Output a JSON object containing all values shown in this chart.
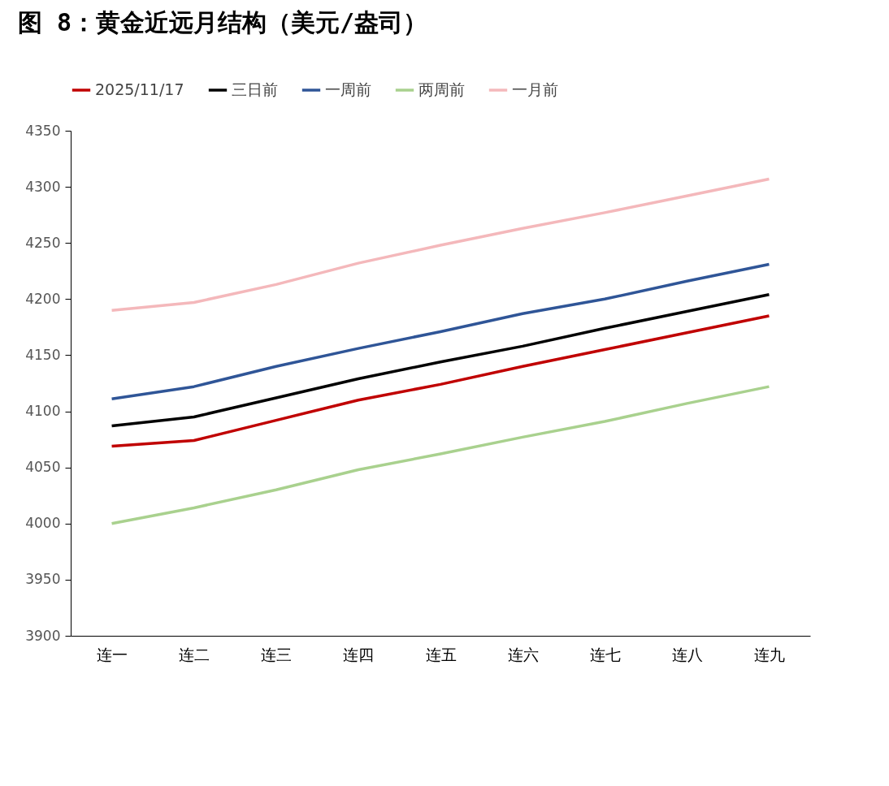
{
  "chart_data": {
    "type": "line",
    "title": "图 8：黄金近远月结构（美元/盎司）",
    "categories": [
      "连一",
      "连二",
      "连三",
      "连四",
      "连五",
      "连六",
      "连七",
      "连八",
      "连九"
    ],
    "series": [
      {
        "name": "2025/11/17",
        "color": "#c00000",
        "values": [
          4069,
          4074,
          4092,
          4110,
          4124,
          4140,
          4155,
          4170,
          4185
        ]
      },
      {
        "name": "三日前",
        "color": "#000000",
        "values": [
          4087,
          4095,
          4112,
          4129,
          4144,
          4158,
          4174,
          4189,
          4204
        ]
      },
      {
        "name": "一周前",
        "color": "#2f5597",
        "values": [
          4111,
          4122,
          4140,
          4156,
          4171,
          4187,
          4200,
          4216,
          4231
        ]
      },
      {
        "name": "两周前",
        "color": "#a9d18e",
        "values": [
          4000,
          4014,
          4030,
          4048,
          4062,
          4077,
          4091,
          4107,
          4122
        ]
      },
      {
        "name": "一月前",
        "color": "#f4b8bb",
        "values": [
          4190,
          4197,
          4213,
          4232,
          4248,
          4263,
          4277,
          4292,
          4307
        ]
      }
    ],
    "ylim": [
      3900,
      4350
    ],
    "yticks": [
      3900,
      3950,
      4000,
      4050,
      4100,
      4150,
      4200,
      4250,
      4300,
      4350
    ],
    "grid": false,
    "legend": "top",
    "marker": "none",
    "line_style": "solid"
  }
}
